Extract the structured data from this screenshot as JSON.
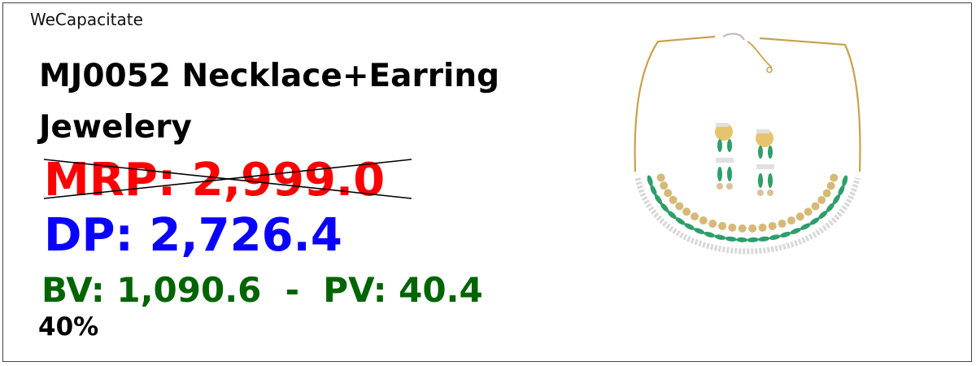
{
  "brand": "WeCapacitate",
  "product": {
    "title": "MJ0052 Necklace+Earring Jewelery",
    "mrp": "MRP: 2,999.0",
    "dp": "DP: 2,726.4",
    "bv_pv": "BV: 1,090.6  -  PV: 40.4",
    "percent": "40%"
  },
  "colors": {
    "mrp": "#ff0000",
    "dp": "#0a00ff",
    "bv_pv": "#006400",
    "gold": "#c9a14a",
    "emerald": "#2e9e6a"
  },
  "image": {
    "icon": "necklace-earring-icon"
  }
}
